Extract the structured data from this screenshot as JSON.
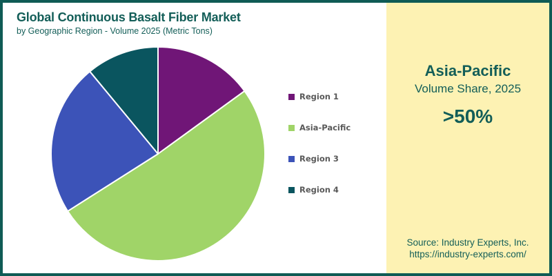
{
  "header": {
    "title": "Global Continuous Basalt Fiber Market",
    "subtitle": "by Geographic Region - Volume 2025 (Metric Tons)"
  },
  "chart_data": {
    "type": "pie",
    "title": "Global Continuous Basalt Fiber Market",
    "subtitle": "by Geographic Region - Volume 2025 (Metric Tons)",
    "unit": "percent of volume (estimated from slice angles)",
    "start_angle_deg": 0,
    "direction": "clockwise",
    "legend_position": "right",
    "slices": [
      {
        "name": "Region 1",
        "percent": 15,
        "color": "#701677"
      },
      {
        "name": "Asia-Pacific",
        "percent": 51,
        "color": "#A0D468"
      },
      {
        "name": "Region 3",
        "percent": 23,
        "color": "#3C53B8"
      },
      {
        "name": "Region 4",
        "percent": 11,
        "color": "#0A555F"
      }
    ]
  },
  "highlight_panel": {
    "region": "Asia-Pacific",
    "caption": "Volume Share, 2025",
    "value": ">50%",
    "source_line1": "Source: Industry Experts, Inc.",
    "source_line2": "https://industry-experts.com/"
  },
  "colors": {
    "border": "#0F5B55",
    "title_text": "#135E58",
    "panel_bg": "#FDF2B3",
    "panel_text": "#135E58",
    "legend_text": "#595959",
    "background": "#FFFFFF"
  }
}
